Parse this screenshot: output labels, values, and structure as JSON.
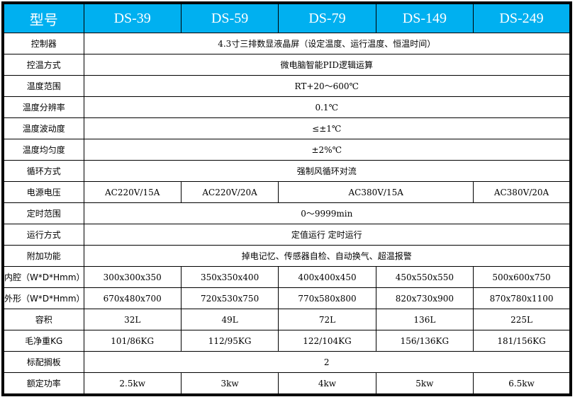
{
  "header": [
    "型号",
    "DS-39",
    "DS-59",
    "DS-79",
    "DS-149",
    "DS-249"
  ],
  "colors": {
    "header_bg": "#00b0f0",
    "header_text": "#ffffff"
  },
  "rows": [
    {
      "label": "控制器",
      "span": "4.3寸三排数显液晶屏（设定温度、运行温度、恒温时间）"
    },
    {
      "label": "控温方式",
      "span": "微电脑智能PID逻辑运算"
    },
    {
      "label": "温度范围",
      "span": "RT+20～600℃"
    },
    {
      "label": "温度分辨率",
      "span": "0.1℃"
    },
    {
      "label": "温度波动度",
      "span": "≤±1℃"
    },
    {
      "label": "温度均匀度",
      "span": "±2%℃"
    },
    {
      "label": "循环方式",
      "span": "强制风循环对流"
    },
    {
      "label": "电源电压",
      "cells": [
        "AC220V/15A",
        "AC220V/20A",
        "AC380V/15A",
        "AC380V/20A"
      ]
    },
    {
      "label": "定时范围",
      "span": "0～9999min"
    },
    {
      "label": "运行方式",
      "span": "定值运行 定时运行"
    },
    {
      "label": "附加功能",
      "span": "掉电记忆、传感器自检、自动换气、超温报警"
    },
    {
      "label": "内腔（W*D*Hmm）",
      "cells": [
        "300x300x350",
        "350x350x400",
        "400x400x450",
        "450x550x550",
        "500x600x750"
      ]
    },
    {
      "label": "外形（W*D*Hmm）",
      "cells": [
        "670x480x700",
        "720x530x750",
        "770x580x800",
        "820x730x900",
        "870x780x1100"
      ]
    },
    {
      "label": "容积",
      "cells": [
        "32L",
        "49L",
        "72L",
        "136L",
        "225L"
      ]
    },
    {
      "label": "毛净重KG",
      "cells": [
        "101/86KG",
        "112/95KG",
        "122/104KG",
        "156/136KG",
        "181/156KG"
      ]
    },
    {
      "label": "标配搁板",
      "span": "2"
    },
    {
      "label": "额定功率",
      "cells": [
        "2.5kw",
        "3kw",
        "4kw",
        "5kw",
        "6.5kw"
      ]
    }
  ]
}
